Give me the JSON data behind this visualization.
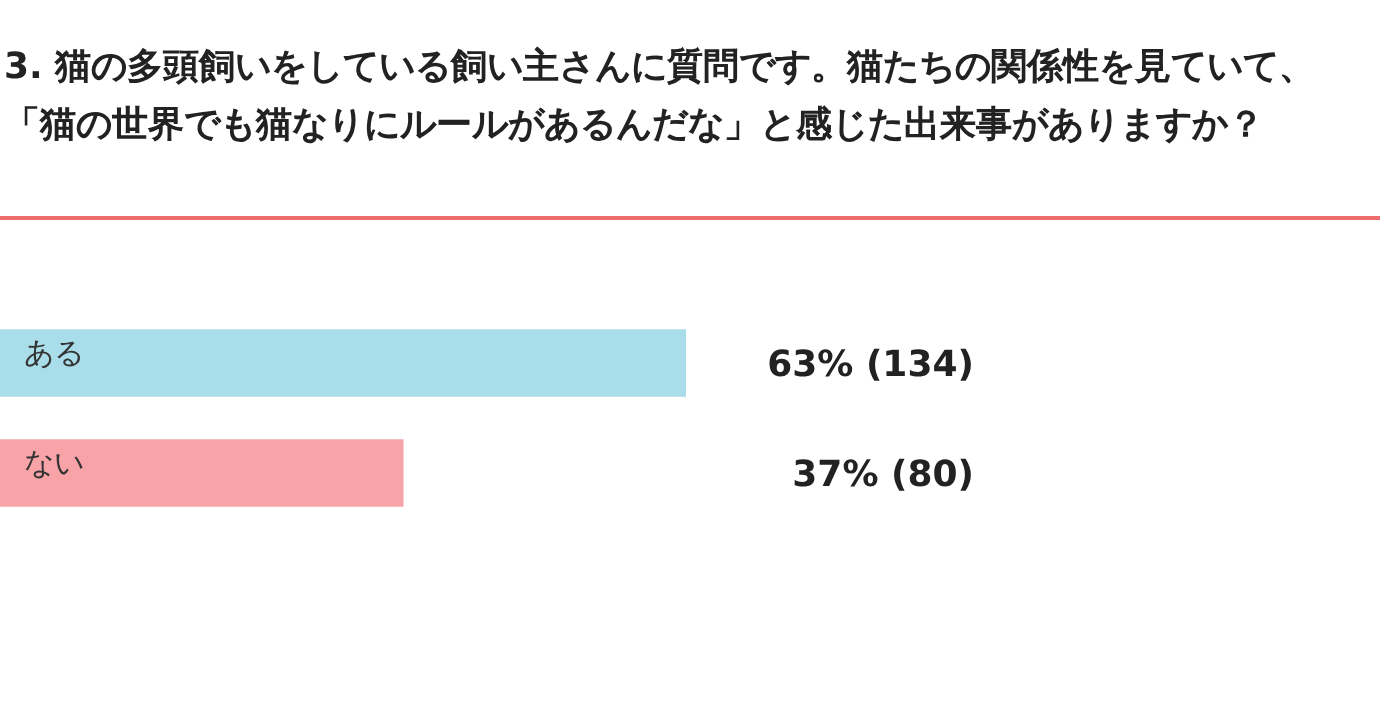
{
  "chart_data": {
    "type": "bar",
    "orientation": "horizontal",
    "title": "3. 猫の多頭飼いをしている飼い主さんに質問です。猫たちの関係性を見ていて、「猫の世界でも猫なりにルールがあるんだな」と感じた出来事がありますか？",
    "categories": [
      "ある",
      "ない"
    ],
    "values": [
      63,
      37
    ],
    "colors": [
      "#a9dde9",
      "#f8a3a8"
    ],
    "value_labels": [
      "63% (134)",
      "37% (80)"
    ],
    "legend": false
  }
}
